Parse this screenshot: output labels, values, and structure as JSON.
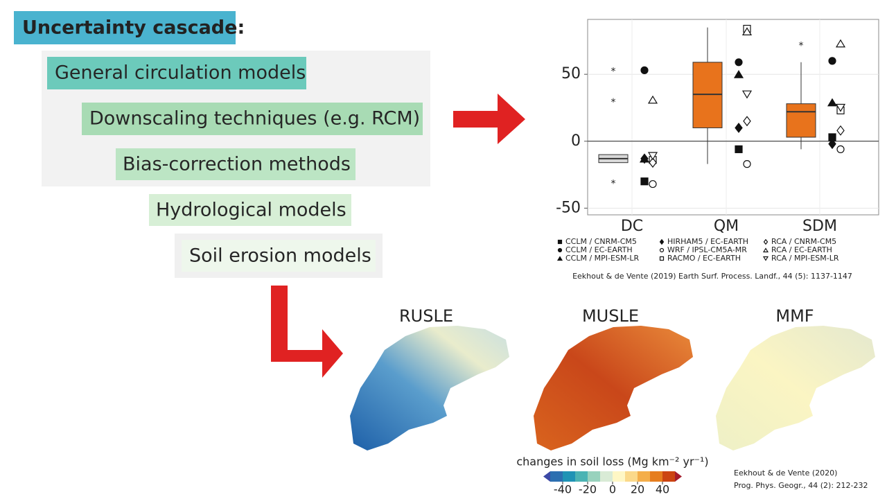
{
  "title": "Uncertainty cascade:",
  "cascade": [
    "General circulation models",
    "Downscaling techniques (e.g. RCM)",
    "Bias-correction methods",
    "Hydrological models",
    "Soil erosion models"
  ],
  "chart_data": {
    "type": "boxplot",
    "categories": [
      "DC",
      "QM",
      "SDM"
    ],
    "boxes": [
      {
        "low": -16,
        "q1": -16,
        "median": -13,
        "q3": -10,
        "high": -10,
        "outliers": [
          53,
          30,
          -31
        ]
      },
      {
        "low": -17,
        "q1": 10,
        "median": 35,
        "q3": 59,
        "high": 85,
        "outliers": []
      },
      {
        "low": -6,
        "q1": 3,
        "median": 22,
        "q3": 28,
        "high": 59,
        "outliers": [
          72
        ]
      }
    ],
    "box_color": "#e8731c",
    "series": [
      {
        "name": "CCLM / CNRM-CM5",
        "shape": "square-filled",
        "values": [
          -30,
          -6,
          3
        ]
      },
      {
        "name": "CCLM / EC-EARTH",
        "shape": "circle-filled",
        "values": [
          53,
          59,
          60
        ]
      },
      {
        "name": "CCLM / MPI-ESM-LR",
        "shape": "triangle-filled",
        "values": [
          -13,
          50,
          29
        ]
      },
      {
        "name": "HIRHAM5 / EC-EARTH",
        "shape": "diamond-filled",
        "values": [
          -13,
          10,
          -2
        ]
      },
      {
        "name": "WRF / IPSL-CM5A-MR",
        "shape": "circle-open",
        "values": [
          -32,
          -17,
          -6
        ]
      },
      {
        "name": "RACMO / EC-EARTH",
        "shape": "square-open",
        "values": [
          -14,
          84,
          23
        ]
      },
      {
        "name": "RCA / CNRM-CM5",
        "shape": "diamond-open",
        "values": [
          -16,
          15,
          8
        ]
      },
      {
        "name": "RCA / EC-EARTH",
        "shape": "triangle-open",
        "values": [
          31,
          82,
          73
        ]
      },
      {
        "name": "RCA / MPI-ESM-LR",
        "shape": "triangle-down-open",
        "values": [
          -11,
          35,
          25
        ]
      }
    ],
    "ylim": [
      -55,
      91
    ],
    "yticks": [
      -50,
      0,
      50
    ],
    "grid": true
  },
  "citation_1": "Eekhout & de Vente (2019) Earth Surf. Process. Landf., 44 (5): 1137-1147",
  "maps": [
    "RUSLE",
    "MUSLE",
    "MMF"
  ],
  "colorbar": {
    "label": "changes in soil loss (Mg km⁻² yr⁻¹)",
    "lim": [
      -50,
      50
    ],
    "ticks": [
      -40,
      -20,
      0,
      20,
      40
    ],
    "colors": [
      "#2c6fb0",
      "#1f93b5",
      "#4bb3b3",
      "#98d2bd",
      "#d9ebd6",
      "#fff7c5",
      "#fbd98a",
      "#f4ae4a",
      "#e67d1e",
      "#cc4512"
    ]
  },
  "citation_2": [
    "Eekhout & de Vente (2020)",
    "Prog. Phys. Geogr., 44 (2): 212-232"
  ]
}
